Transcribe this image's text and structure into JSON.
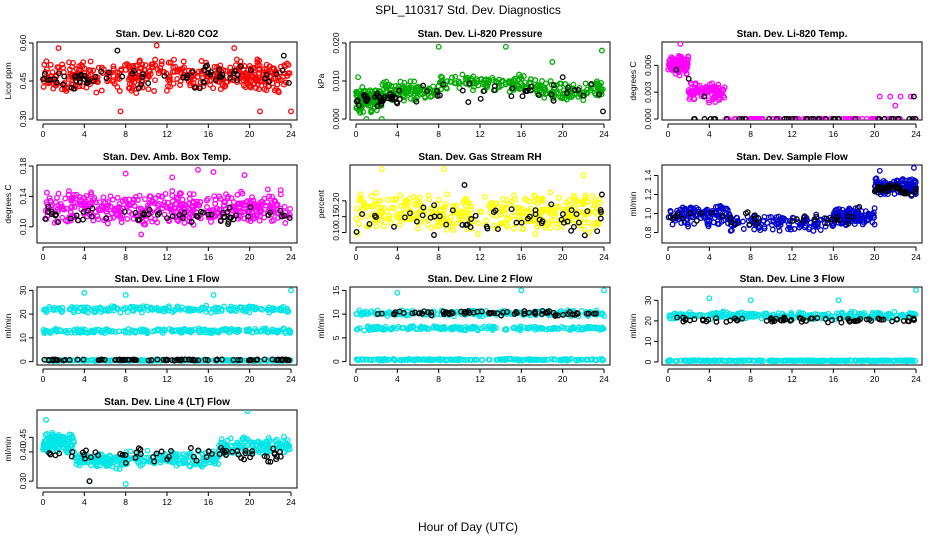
{
  "figure": {
    "title": "SPL_110317  Std. Dev. Diagnostics",
    "xlabel": "Hour of Day (UTC)"
  },
  "chart_data": [
    {
      "type": "scatter",
      "title": "Stan. Dev. Li-820 CO2",
      "ylabel": "Licor ppm",
      "xlim": [
        0,
        24
      ],
      "ylim": [
        0.3,
        0.6
      ],
      "xticks": [
        "0",
        "4",
        "8",
        "12",
        "16",
        "20",
        "24"
      ],
      "yticks": [
        "0.30",
        "0.45",
        "0.60"
      ],
      "grid": false,
      "series": [
        {
          "color": "#ff0000",
          "bands": [
            {
              "x": [
                0.0,
                24.0
              ],
              "center": 0.47,
              "spread": 0.07
            }
          ],
          "count": 420,
          "outliers": [
            [
              1.5,
              0.58
            ],
            [
              6.0,
              0.62
            ],
            [
              11.0,
              0.59
            ],
            [
              18.5,
              0.58
            ],
            [
              21.0,
              0.33
            ],
            [
              24.0,
              0.33
            ],
            [
              7.5,
              0.33
            ]
          ]
        },
        {
          "color": "#000000",
          "bands": [
            {
              "x": [
                0.0,
                24.0
              ],
              "center": 0.46,
              "spread": 0.06
            }
          ],
          "count": 70,
          "outliers": [
            [
              7.2,
              0.57
            ],
            [
              23.3,
              0.55
            ]
          ]
        }
      ]
    },
    {
      "type": "scatter",
      "title": "Stan. Dev. Li-820 Pressure",
      "ylabel": "kPa",
      "xlim": [
        0,
        24
      ],
      "ylim": [
        0.0,
        0.02
      ],
      "xticks": [
        "0",
        "4",
        "8",
        "12",
        "16",
        "20",
        "24"
      ],
      "yticks": [
        "0.000",
        "0.010",
        "0.020"
      ],
      "grid": false,
      "series": [
        {
          "color": "#00aa00",
          "bands": [
            {
              "x": [
                0.0,
                2.5
              ],
              "center": 0.005,
              "spread": 0.0035
            },
            {
              "x": [
                2.5,
                8.0
              ],
              "center": 0.0075,
              "spread": 0.003
            },
            {
              "x": [
                8.0,
                17.0
              ],
              "center": 0.0095,
              "spread": 0.0025
            },
            {
              "x": [
                17.0,
                24.0
              ],
              "center": 0.0075,
              "spread": 0.003
            }
          ],
          "count": 420,
          "outliers": [
            [
              0.2,
              0.011
            ],
            [
              8.0,
              0.019
            ],
            [
              14.5,
              0.019
            ],
            [
              23.8,
              0.018
            ],
            [
              19.0,
              0.015
            ],
            [
              1.0,
              0.0
            ],
            [
              2.5,
              0.0
            ]
          ]
        },
        {
          "color": "#000000",
          "bands": [
            {
              "x": [
                0.0,
                4.0
              ],
              "center": 0.005,
              "spread": 0.002
            },
            {
              "x": [
                4.0,
                24.0
              ],
              "center": 0.007,
              "spread": 0.003
            }
          ],
          "count": 70,
          "outliers": [
            [
              20.0,
              0.011
            ],
            [
              23.9,
              0.002
            ]
          ]
        }
      ]
    },
    {
      "type": "scatter",
      "title": "Stan. Dev. Li-820 Temp.",
      "ylabel": "degrees C",
      "xlim": [
        0,
        24
      ],
      "ylim": [
        0.0,
        0.0085
      ],
      "xticks": [
        "0",
        "4",
        "8",
        "12",
        "16",
        "20",
        "24"
      ],
      "yticks": [
        "0.000",
        "0.003",
        "0.006"
      ],
      "grid": false,
      "series": [
        {
          "color": "#ff00ff",
          "bands": [
            {
              "x": [
                0.0,
                2.0
              ],
              "center": 0.006,
              "spread": 0.0012
            },
            {
              "x": [
                2.0,
                5.5
              ],
              "center": 0.003,
              "spread": 0.0012
            },
            {
              "x": [
                5.5,
                24.0
              ],
              "center": 0.0,
              "spread": 0.0
            }
          ],
          "count": 260,
          "outliers": [
            [
              1.2,
              0.0084
            ],
            [
              20.5,
              0.0025
            ],
            [
              21.5,
              0.0025
            ],
            [
              22.5,
              0.0025
            ],
            [
              23.5,
              0.0025
            ],
            [
              22.0,
              0.0015
            ]
          ]
        },
        {
          "color": "#000000",
          "bands": [
            {
              "x": [
                2.5,
                24.0
              ],
              "center": 0.0,
              "spread": 0.0
            }
          ],
          "count": 40,
          "outliers": [
            [
              0.8,
              0.0055
            ],
            [
              2.0,
              0.0045
            ],
            [
              3.5,
              0.0025
            ],
            [
              23.8,
              0.0025
            ]
          ]
        }
      ]
    },
    {
      "type": "scatter",
      "title": "Stan. Dev. Amb. Box Temp.",
      "ylabel": "degrees C",
      "xlim": [
        0,
        24
      ],
      "ylim": [
        0.08,
        0.18
      ],
      "xticks": [
        "0",
        "4",
        "8",
        "12",
        "16",
        "20",
        "24"
      ],
      "yticks": [
        "0.10",
        "0.14",
        "0.18"
      ],
      "grid": false,
      "series": [
        {
          "color": "#ff00ff",
          "bands": [
            {
              "x": [
                0.0,
                24.0
              ],
              "center": 0.125,
              "spread": 0.025
            }
          ],
          "count": 420,
          "outliers": [
            [
              15.0,
              0.175
            ],
            [
              16.5,
              0.172
            ],
            [
              8.0,
              0.17
            ],
            [
              12.5,
              0.165
            ],
            [
              9.5,
              0.09
            ],
            [
              19.5,
              0.168
            ]
          ]
        },
        {
          "color": "#000000",
          "bands": [
            {
              "x": [
                0.0,
                24.0
              ],
              "center": 0.115,
              "spread": 0.012
            }
          ],
          "count": 60,
          "outliers": []
        }
      ]
    },
    {
      "type": "scatter",
      "title": "Stan. Dev. Gas Stream RH",
      "ylabel": "percent",
      "xlim": [
        0,
        24
      ],
      "ylim": [
        0.07,
        0.31
      ],
      "xticks": [
        "0",
        "4",
        "8",
        "12",
        "16",
        "20",
        "24"
      ],
      "yticks": [
        "0.10",
        "0.15",
        "0.20"
      ],
      "grid": false,
      "series": [
        {
          "color": "#ffff00",
          "bands": [
            {
              "x": [
                0.0,
                24.0
              ],
              "center": 0.16,
              "spread": 0.07
            }
          ],
          "count": 380,
          "outliers": [
            [
              2.5,
              0.3
            ],
            [
              8.5,
              0.3
            ],
            [
              22.0,
              0.28
            ]
          ]
        },
        {
          "color": "#000000",
          "bands": [
            {
              "x": [
                0.0,
                24.0
              ],
              "center": 0.14,
              "spread": 0.06
            }
          ],
          "count": 55,
          "outliers": [
            [
              10.5,
              0.25
            ],
            [
              23.8,
              0.22
            ]
          ]
        }
      ]
    },
    {
      "type": "scatter",
      "title": "Stan. Dev. Sample Flow",
      "ylabel": "ml/min",
      "xlim": [
        0,
        24
      ],
      "ylim": [
        0.7,
        1.5
      ],
      "xticks": [
        "0",
        "4",
        "8",
        "12",
        "16",
        "20",
        "24"
      ],
      "yticks": [
        "0.8",
        "1.0",
        "1.2",
        "1.4"
      ],
      "grid": false,
      "series": [
        {
          "color": "#0000cc",
          "bands": [
            {
              "x": [
                0.0,
                6.0
              ],
              "center": 0.98,
              "spread": 0.12
            },
            {
              "x": [
                6.0,
                16.0
              ],
              "center": 0.9,
              "spread": 0.1
            },
            {
              "x": [
                16.0,
                20.0
              ],
              "center": 0.97,
              "spread": 0.1
            },
            {
              "x": [
                20.0,
                24.0
              ],
              "center": 1.28,
              "spread": 0.1
            }
          ],
          "count": 460,
          "outliers": [
            [
              23.8,
              1.48
            ],
            [
              20.5,
              1.45
            ]
          ]
        },
        {
          "color": "#000000",
          "bands": [
            {
              "x": [
                0.0,
                20.0
              ],
              "center": 0.95,
              "spread": 0.08
            },
            {
              "x": [
                20.0,
                24.0
              ],
              "center": 1.25,
              "spread": 0.06
            }
          ],
          "count": 70,
          "outliers": [
            [
              18.5,
              1.07
            ]
          ]
        }
      ]
    },
    {
      "type": "scatter",
      "title": "Stan. Dev. Line 1 Flow",
      "ylabel": "ml/min",
      "xlim": [
        0,
        24
      ],
      "ylim": [
        -1,
        31
      ],
      "xticks": [
        "0",
        "4",
        "8",
        "12",
        "16",
        "20",
        "24"
      ],
      "yticks": [
        "0",
        "10",
        "20",
        "30"
      ],
      "grid": false,
      "series": [
        {
          "color": "#00e5e5",
          "bands": [
            {
              "x": [
                0.0,
                24.0
              ],
              "center": 22.0,
              "spread": 1.6
            },
            {
              "x": [
                0.0,
                24.0
              ],
              "center": 13.0,
              "spread": 1.2
            },
            {
              "x": [
                0.0,
                24.0
              ],
              "center": 0.5,
              "spread": 0.3
            }
          ],
          "count": 600,
          "outliers": [
            [
              4.0,
              29.0
            ],
            [
              8.0,
              28.0
            ],
            [
              24.0,
              30.0
            ],
            [
              16.5,
              28.0
            ]
          ]
        },
        {
          "color": "#000000",
          "bands": [
            {
              "x": [
                0.0,
                24.0
              ],
              "center": 0.7,
              "spread": 0.3
            }
          ],
          "count": 90,
          "outliers": []
        }
      ]
    },
    {
      "type": "scatter",
      "title": "Stan. Dev. Line 2 Flow",
      "ylabel": "ml/min",
      "xlim": [
        0,
        24
      ],
      "ylim": [
        -0.5,
        15.5
      ],
      "xticks": [
        "0",
        "4",
        "8",
        "12",
        "16",
        "20",
        "24"
      ],
      "yticks": [
        "0",
        "5",
        "10",
        "15"
      ],
      "grid": false,
      "series": [
        {
          "color": "#00e5e5",
          "bands": [
            {
              "x": [
                0.0,
                24.0
              ],
              "center": 10.2,
              "spread": 0.7
            },
            {
              "x": [
                0.0,
                24.0
              ],
              "center": 7.0,
              "spread": 0.5
            },
            {
              "x": [
                0.0,
                24.0
              ],
              "center": 0.4,
              "spread": 0.2
            }
          ],
          "count": 600,
          "outliers": [
            [
              4.0,
              14.5
            ],
            [
              16.0,
              15.0
            ],
            [
              24.0,
              15.0
            ]
          ]
        },
        {
          "color": "#000000",
          "bands": [
            {
              "x": [
                2.0,
                24.0
              ],
              "center": 10.2,
              "spread": 0.6
            }
          ],
          "count": 75,
          "outliers": []
        }
      ]
    },
    {
      "type": "scatter",
      "title": "Stan. Dev. Line 3 Flow",
      "ylabel": "ml/min",
      "xlim": [
        0,
        24
      ],
      "ylim": [
        -1,
        36
      ],
      "xticks": [
        "0",
        "4",
        "8",
        "12",
        "16",
        "20",
        "24"
      ],
      "yticks": [
        "0",
        "10",
        "20",
        "30"
      ],
      "grid": false,
      "series": [
        {
          "color": "#00e5e5",
          "bands": [
            {
              "x": [
                0.0,
                24.0
              ],
              "center": 22.5,
              "spread": 2.2
            },
            {
              "x": [
                0.0,
                24.0
              ],
              "center": 0.6,
              "spread": 0.3
            }
          ],
          "count": 520,
          "outliers": [
            [
              4.0,
              31.0
            ],
            [
              8.0,
              30.0
            ],
            [
              24.0,
              35.0
            ],
            [
              16.5,
              30.0
            ]
          ]
        },
        {
          "color": "#000000",
          "bands": [
            {
              "x": [
                0.5,
                24.0
              ],
              "center": 20.5,
              "spread": 1.5
            }
          ],
          "count": 75,
          "outliers": []
        }
      ]
    },
    {
      "type": "scatter",
      "title": "Stan. Dev. Line 4 (LT) Flow",
      "ylabel": "ml/min",
      "xlim": [
        0,
        24
      ],
      "ylim": [
        0.28,
        0.54
      ],
      "xticks": [
        "0",
        "4",
        "8",
        "12",
        "16",
        "20",
        "24"
      ],
      "yticks": [
        "0.30",
        "0.40",
        "0.45"
      ],
      "grid": false,
      "series": [
        {
          "color": "#00e5e5",
          "bands": [
            {
              "x": [
                0.0,
                3.0
              ],
              "center": 0.43,
              "spread": 0.04
            },
            {
              "x": [
                3.0,
                8.0
              ],
              "center": 0.37,
              "spread": 0.03
            },
            {
              "x": [
                8.0,
                17.0
              ],
              "center": 0.375,
              "spread": 0.03
            },
            {
              "x": [
                17.0,
                24.0
              ],
              "center": 0.42,
              "spread": 0.035
            }
          ],
          "count": 500,
          "outliers": [
            [
              0.3,
              0.51
            ],
            [
              19.8,
              0.54
            ],
            [
              4.5,
              0.3
            ],
            [
              8.0,
              0.29
            ]
          ]
        },
        {
          "color": "#000000",
          "bands": [
            {
              "x": [
                0.5,
                24.0
              ],
              "center": 0.39,
              "spread": 0.03
            }
          ],
          "count": 65,
          "outliers": [
            [
              4.5,
              0.3
            ]
          ]
        }
      ]
    }
  ]
}
